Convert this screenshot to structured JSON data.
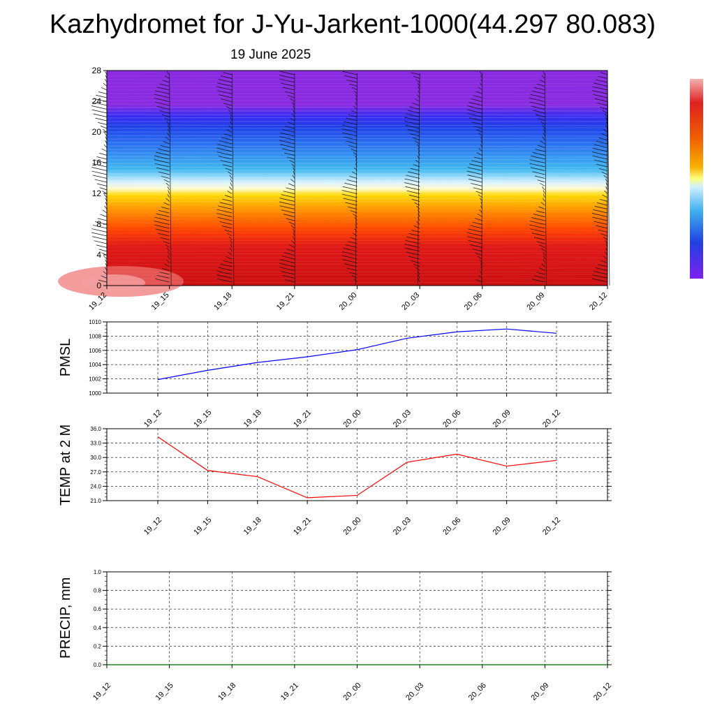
{
  "title": "Kazhydromet for J-Yu-Jarkent-1000(44.297 80.083)",
  "subtitle": "19 June 2025",
  "colors": {
    "pmsl_line": "#0000ff",
    "temp_line": "#ff0000",
    "precip_line": "#006400",
    "grid": "#000000"
  },
  "chart_data": [
    {
      "type": "heatmap",
      "title": "",
      "x_categories": [
        "19_12",
        "19_15",
        "19_18",
        "19_21",
        "20_00",
        "20_03",
        "20_06",
        "20_09",
        "20_12"
      ],
      "y_ticks": [
        0,
        4,
        8,
        12,
        16,
        20,
        24,
        28
      ],
      "ylim": [
        0,
        28
      ],
      "color_levels": [
        {
          "y_from": 0,
          "y_to": 6,
          "band": "red"
        },
        {
          "y_from": 6,
          "y_to": 11,
          "band": "orange"
        },
        {
          "y_from": 11,
          "y_to": 13,
          "band": "yellow-white"
        },
        {
          "y_from": 13,
          "y_to": 18,
          "band": "light-blue"
        },
        {
          "y_from": 18,
          "y_to": 23,
          "band": "blue"
        },
        {
          "y_from": 23,
          "y_to": 28,
          "band": "purple"
        }
      ],
      "overlay": "wind barbs",
      "colorbar": [
        "#f4b0b0",
        "#e02020",
        "#f06000",
        "#f8b000",
        "#ffff80",
        "#d0f0ff",
        "#40b0f0",
        "#2040e0",
        "#8020f0"
      ]
    },
    {
      "type": "line",
      "ylabel": "PMSL",
      "x_categories": [
        "19_12",
        "19_15",
        "19_18",
        "19_21",
        "20_00",
        "20_03",
        "20_06",
        "20_09",
        "20_12"
      ],
      "ylim": [
        1000,
        1010
      ],
      "y_ticks": [
        "1000",
        "1002",
        "1004",
        "1006",
        "1008",
        "1010"
      ],
      "series": [
        {
          "values": [
            1001.9,
            1003.2,
            1004.3,
            1005.1,
            1006.1,
            1007.7,
            1008.6,
            1009.0,
            1008.4
          ]
        }
      ]
    },
    {
      "type": "line",
      "ylabel": "TEMP at 2 M",
      "x_categories": [
        "19_12",
        "19_15",
        "19_18",
        "19_21",
        "20_00",
        "20_03",
        "20_06",
        "20_09",
        "20_12"
      ],
      "ylim": [
        21.0,
        36.0
      ],
      "y_ticks": [
        "21.0",
        "24.0",
        "27.0",
        "30.0",
        "33.0",
        "36.0"
      ],
      "series": [
        {
          "values": [
            34.3,
            27.3,
            26.0,
            21.6,
            22.1,
            29.0,
            30.7,
            28.2,
            29.4
          ]
        }
      ]
    },
    {
      "type": "line",
      "ylabel": "PRECIP, mm",
      "x_categories": [
        "19_12",
        "19_15",
        "19_18",
        "19_21",
        "20_00",
        "20_03",
        "20_06",
        "20_09",
        "20_12"
      ],
      "ylim": [
        0,
        1
      ],
      "y_ticks": [
        "0.0",
        "0.2",
        "0.4",
        "0.6",
        "0.8",
        "1.0"
      ],
      "series": [
        {
          "values": [
            0,
            0,
            0,
            0,
            0,
            0,
            0,
            0,
            0
          ]
        }
      ]
    }
  ]
}
